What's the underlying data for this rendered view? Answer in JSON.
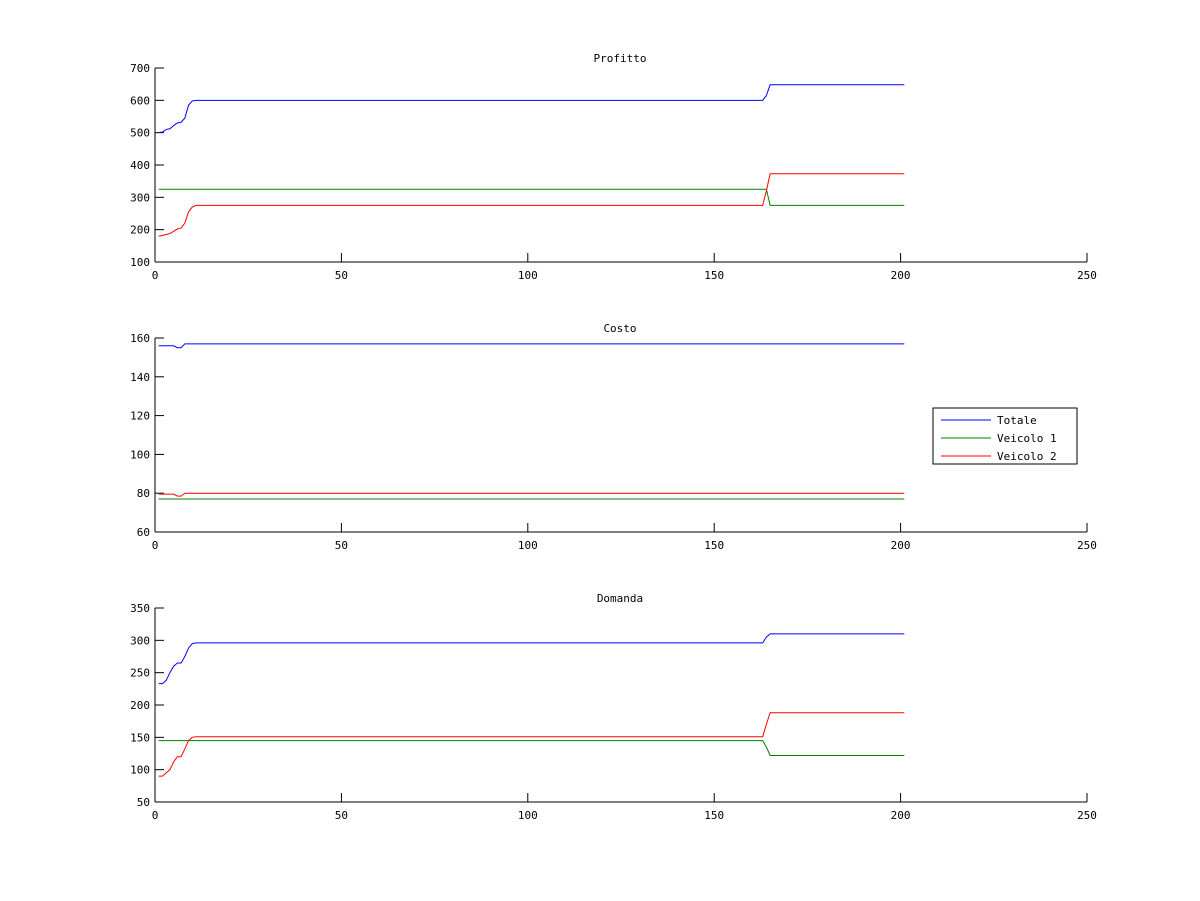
{
  "figure": {
    "background": "#ffffff"
  },
  "colors": {
    "Totale": "#0000ff",
    "Veicolo 1": "#008000",
    "Veicolo 2": "#ff0000",
    "axis": "#000000"
  },
  "legend": {
    "placement": "right-middle",
    "entries": [
      {
        "name": "Totale",
        "color": "#0000ff"
      },
      {
        "name": "Veicolo 1",
        "color": "#008000"
      },
      {
        "name": "Veicolo 2",
        "color": "#ff0000"
      }
    ]
  },
  "chart_data": [
    {
      "type": "line",
      "title": "Profitto",
      "xlabel": "",
      "ylabel": "",
      "xlim": [
        0,
        250
      ],
      "ylim": [
        100,
        700
      ],
      "xticks": [
        0,
        50,
        100,
        150,
        200,
        250
      ],
      "yticks": [
        100,
        200,
        300,
        400,
        500,
        600,
        700
      ],
      "grid": false,
      "series": [
        {
          "name": "Totale",
          "color": "#0000ff",
          "points": [
            [
              1,
              500
            ],
            [
              2,
              502
            ],
            [
              3,
              510
            ],
            [
              4,
              512
            ],
            [
              5,
              522
            ],
            [
              6,
              530
            ],
            [
              7,
              532
            ],
            [
              8,
              545
            ],
            [
              9,
              585
            ],
            [
              10,
              598
            ],
            [
              11,
              600
            ],
            [
              163,
              600
            ],
            [
              164,
              615
            ],
            [
              165,
              648
            ],
            [
              201,
              648
            ]
          ]
        },
        {
          "name": "Veicolo 1",
          "color": "#008000",
          "points": [
            [
              1,
              325
            ],
            [
              163,
              325
            ],
            [
              164,
              325
            ],
            [
              165,
              275
            ],
            [
              201,
              275
            ]
          ]
        },
        {
          "name": "Veicolo 2",
          "color": "#ff0000",
          "points": [
            [
              1,
              180
            ],
            [
              2,
              182
            ],
            [
              3,
              185
            ],
            [
              4,
              188
            ],
            [
              5,
              195
            ],
            [
              6,
              202
            ],
            [
              7,
              205
            ],
            [
              8,
              220
            ],
            [
              9,
              255
            ],
            [
              10,
              270
            ],
            [
              11,
              275
            ],
            [
              163,
              275
            ],
            [
              164,
              320
            ],
            [
              165,
              373
            ],
            [
              201,
              373
            ]
          ]
        }
      ]
    },
    {
      "type": "line",
      "title": "Costo",
      "xlabel": "",
      "ylabel": "",
      "xlim": [
        0,
        250
      ],
      "ylim": [
        60,
        160
      ],
      "xticks": [
        0,
        50,
        100,
        150,
        200,
        250
      ],
      "yticks": [
        60,
        80,
        100,
        120,
        140,
        160
      ],
      "grid": false,
      "series": [
        {
          "name": "Totale",
          "color": "#0000ff",
          "points": [
            [
              1,
              156
            ],
            [
              5,
              156
            ],
            [
              6,
              155
            ],
            [
              7,
              155
            ],
            [
              8,
              157
            ],
            [
              201,
              157
            ]
          ]
        },
        {
          "name": "Veicolo 1",
          "color": "#008000",
          "points": [
            [
              1,
              77
            ],
            [
              201,
              77
            ]
          ]
        },
        {
          "name": "Veicolo 2",
          "color": "#ff0000",
          "points": [
            [
              1,
              79.5
            ],
            [
              5,
              79.5
            ],
            [
              6,
              78.5
            ],
            [
              7,
              78.5
            ],
            [
              8,
              80
            ],
            [
              201,
              80
            ]
          ]
        }
      ]
    },
    {
      "type": "line",
      "title": "Domanda",
      "xlabel": "",
      "ylabel": "",
      "xlim": [
        0,
        250
      ],
      "ylim": [
        50,
        350
      ],
      "xticks": [
        0,
        50,
        100,
        150,
        200,
        250
      ],
      "yticks": [
        50,
        100,
        150,
        200,
        250,
        300,
        350
      ],
      "grid": false,
      "series": [
        {
          "name": "Totale",
          "color": "#0000ff",
          "points": [
            [
              1,
              233
            ],
            [
              2,
              233
            ],
            [
              3,
              238
            ],
            [
              4,
              250
            ],
            [
              5,
              260
            ],
            [
              6,
              265
            ],
            [
              7,
              265
            ],
            [
              8,
              275
            ],
            [
              9,
              288
            ],
            [
              10,
              295
            ],
            [
              11,
              296
            ],
            [
              163,
              296
            ],
            [
              164,
              305
            ],
            [
              165,
              310
            ],
            [
              201,
              310
            ]
          ]
        },
        {
          "name": "Veicolo 1",
          "color": "#008000",
          "points": [
            [
              1,
              145
            ],
            [
              163,
              145
            ],
            [
              164,
              135
            ],
            [
              165,
              122
            ],
            [
              201,
              122
            ]
          ]
        },
        {
          "name": "Veicolo 2",
          "color": "#ff0000",
          "points": [
            [
              1,
              90
            ],
            [
              2,
              90
            ],
            [
              3,
              95
            ],
            [
              4,
              100
            ],
            [
              5,
              112
            ],
            [
              6,
              120
            ],
            [
              7,
              120
            ],
            [
              8,
              132
            ],
            [
              9,
              145
            ],
            [
              10,
              150
            ],
            [
              11,
              151
            ],
            [
              163,
              151
            ],
            [
              164,
              170
            ],
            [
              165,
              188
            ],
            [
              201,
              188
            ]
          ]
        }
      ]
    }
  ]
}
